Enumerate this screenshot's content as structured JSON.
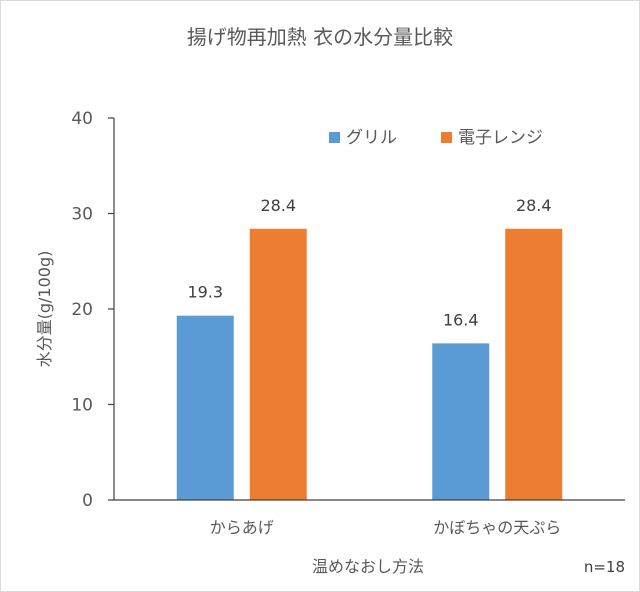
{
  "chart_data": {
    "type": "bar",
    "title": "揚げ物再加熱 衣の水分量比較",
    "xlabel": "温めなおし方法",
    "ylabel": "水分量(g/100g)",
    "categories": [
      "からあげ",
      "かぼちゃの天ぷら"
    ],
    "series": [
      {
        "name": "グリル",
        "color": "#5b9bd5",
        "values": [
          19.3,
          16.4
        ]
      },
      {
        "name": "電子レンジ",
        "color": "#ed7d31",
        "values": [
          28.4,
          28.4
        ]
      }
    ],
    "ylim": [
      0,
      40
    ],
    "yticks": [
      "0",
      "10",
      "20",
      "30",
      "40"
    ],
    "value_labels": [
      [
        "19.3",
        "16.4"
      ],
      [
        "28.4",
        "28.4"
      ]
    ],
    "grid": false,
    "legend": "top-right",
    "note": "n=18"
  }
}
